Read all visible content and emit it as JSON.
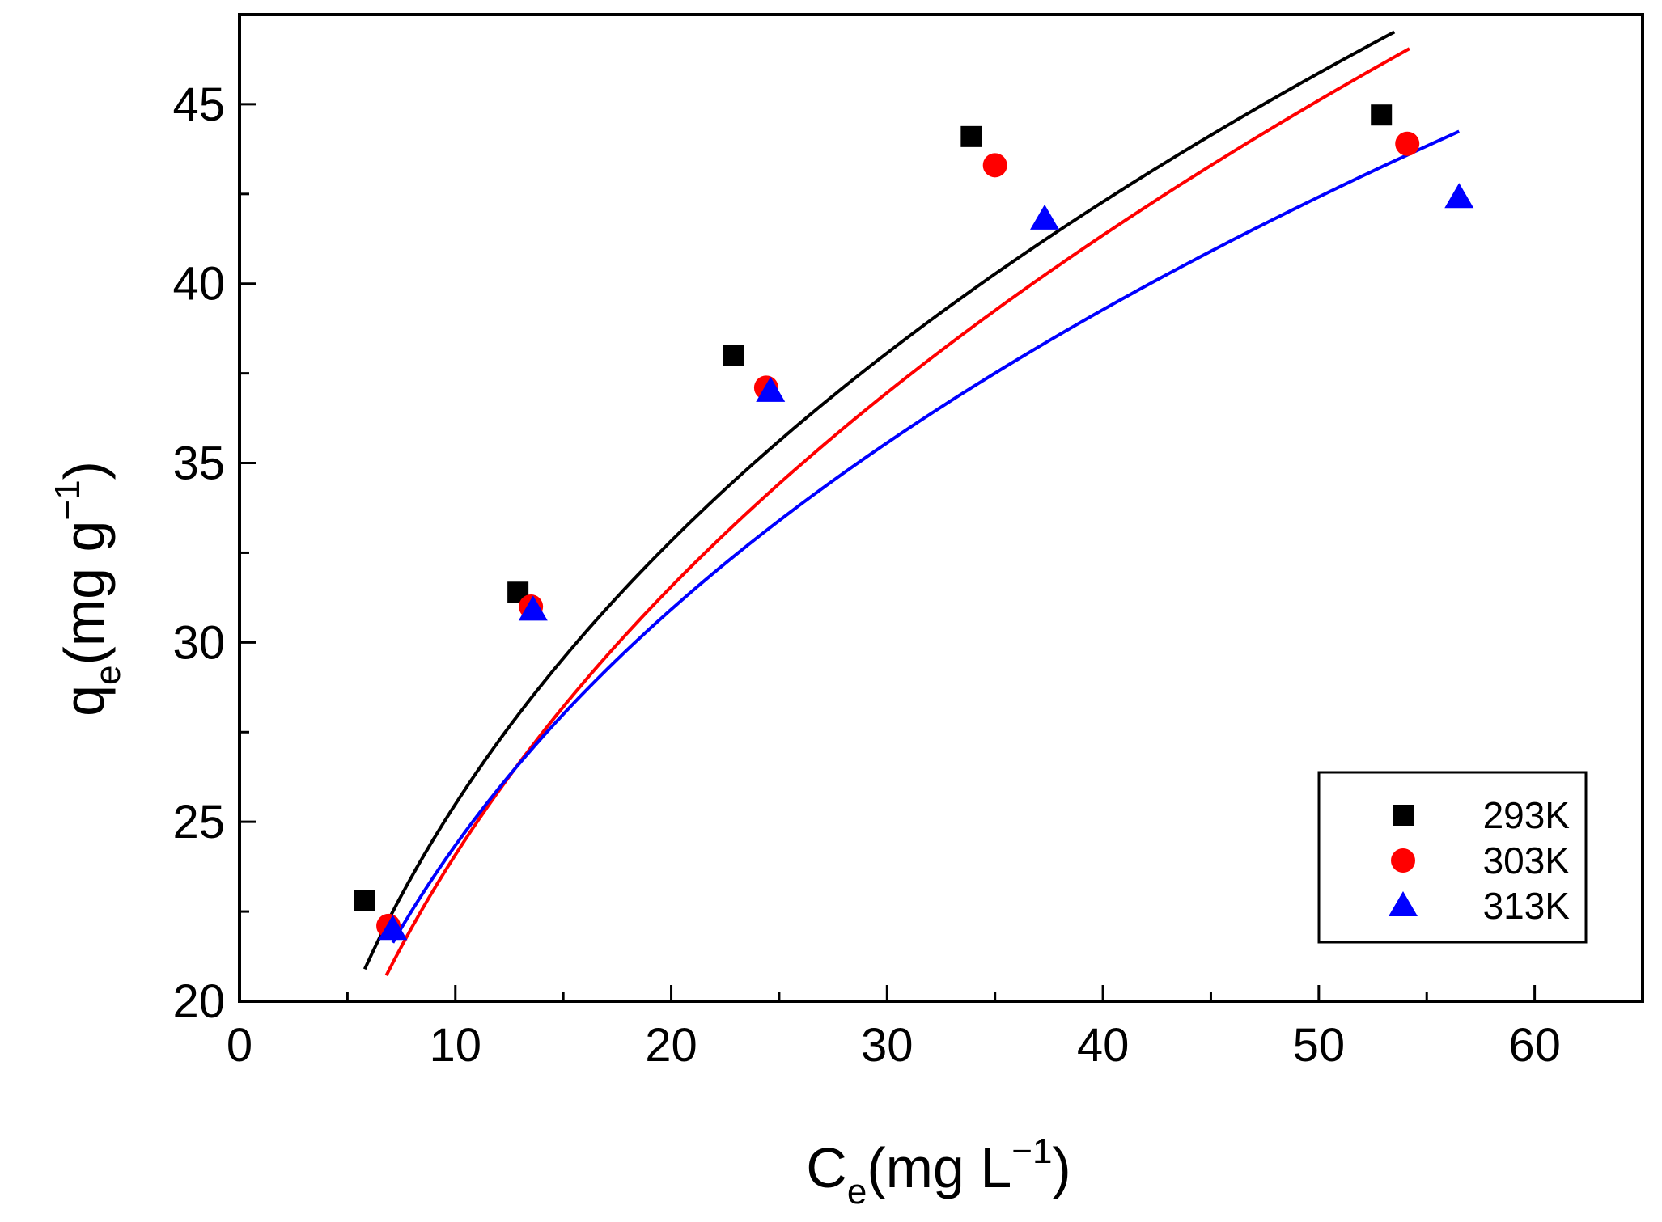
{
  "chart_data": {
    "type": "scatter",
    "title": "",
    "xlabel": {
      "main": "C",
      "sub": "e",
      "units": "(mg L",
      "sup": "−1",
      "close": ")"
    },
    "ylabel": {
      "main": "q",
      "sub": "e",
      "units": "(mg g",
      "sup": "−1",
      "close": ")"
    },
    "xlim": [
      0,
      65
    ],
    "ylim": [
      20,
      47.5
    ],
    "xticks": [
      0,
      10,
      20,
      30,
      40,
      50,
      60
    ],
    "yticks": [
      20,
      25,
      30,
      35,
      40,
      45
    ],
    "x_minor_step": 5,
    "y_minor_step": 2.5,
    "grid": false,
    "legend_position": "bottom-right",
    "series": [
      {
        "name": "293K",
        "color": "#000000",
        "marker": "square",
        "x": [
          5.8,
          12.9,
          22.9,
          33.9,
          52.9
        ],
        "y": [
          22.8,
          31.4,
          38.0,
          44.1,
          44.7
        ],
        "fit": {
          "model": "power",
          "k": 11.0,
          "n": 0.365,
          "x_range": [
            5.8,
            53.5
          ]
        }
      },
      {
        "name": "303K",
        "color": "#ff0000",
        "marker": "circle",
        "x": [
          6.9,
          13.5,
          24.4,
          35.0,
          54.1
        ],
        "y": [
          22.1,
          31.0,
          37.1,
          43.3,
          43.9
        ],
        "fit": {
          "model": "power",
          "k": 9.81,
          "n": 0.39,
          "x_range": [
            6.8,
            54.2
          ]
        }
      },
      {
        "name": "313K",
        "color": "#0000ff",
        "marker": "triangle",
        "x": [
          7.1,
          13.6,
          24.6,
          37.3,
          56.5
        ],
        "y": [
          22.0,
          30.9,
          37.0,
          41.8,
          42.4
        ],
        "fit": {
          "model": "power",
          "k": 11.0,
          "n": 0.345,
          "x_range": [
            7.1,
            56.5
          ]
        }
      }
    ]
  }
}
